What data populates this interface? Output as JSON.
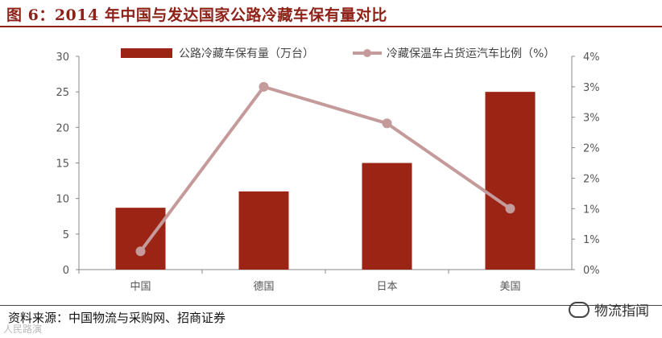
{
  "header": {
    "title": "图 6：2014 年中国与发达国家公路冷藏车保有量对比"
  },
  "footer": {
    "source": "资料来源：中国物流与采购网、招商证券",
    "watermark_right": "物流指闻",
    "watermark_left": "人民路演"
  },
  "colors": {
    "bar": "#9b2414",
    "line": "#c49a9a",
    "accent": "#8e2218"
  },
  "chart_data": {
    "type": "bar",
    "title": "",
    "categories": [
      "中国",
      "德国",
      "日本",
      "美国"
    ],
    "series": [
      {
        "name": "公路冷藏车保有量（万台）",
        "type": "bar",
        "axis": "left",
        "values": [
          8.7,
          11.0,
          15.0,
          25.0
        ]
      },
      {
        "name": "冷藏保温车占货运汽车比例（%）",
        "type": "line",
        "axis": "right",
        "values": [
          0.3,
          3.0,
          2.4,
          1.0
        ]
      }
    ],
    "y_left": {
      "ticks": [
        "0",
        "5",
        "10",
        "15",
        "20",
        "25",
        "30"
      ],
      "min": 0,
      "max": 30
    },
    "y_right": {
      "ticks": [
        "0%",
        "1%",
        "1%",
        "2%",
        "2%",
        "3%",
        "3%",
        "4%"
      ],
      "min": 0,
      "max": 3.5
    },
    "xlabel": "",
    "ylabel": "",
    "grid": false,
    "legend": "top"
  }
}
